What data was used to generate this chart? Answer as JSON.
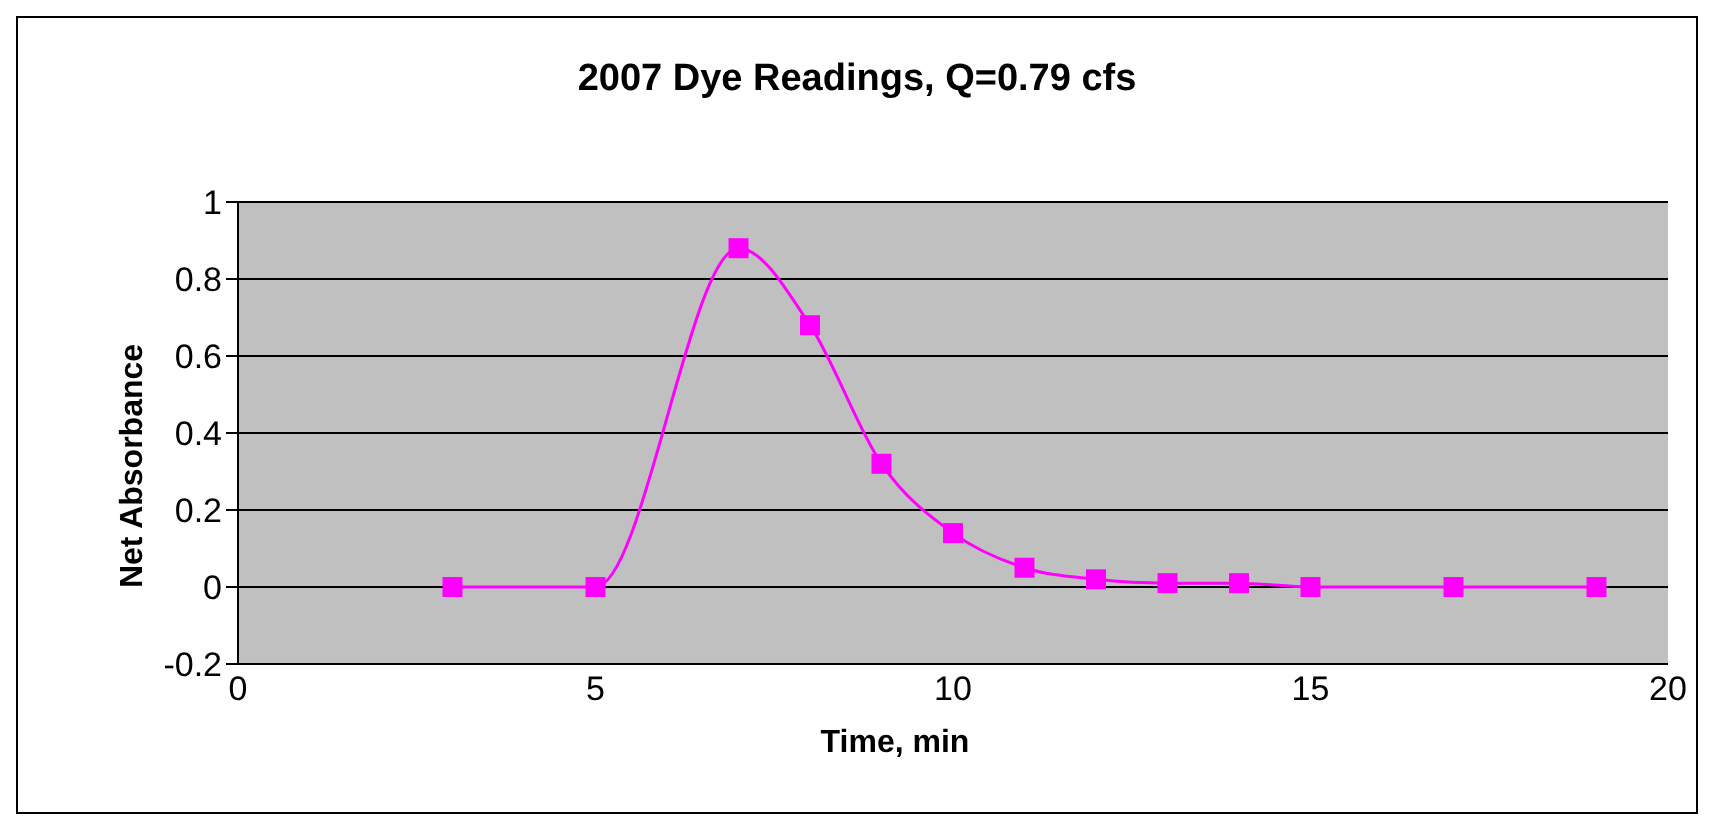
{
  "chart_data": {
    "type": "line",
    "title": "2007 Dye Readings, Q=0.79 cfs",
    "xlabel": "Time, min",
    "ylabel": "Net Absorbance",
    "x": [
      3,
      5,
      7,
      8,
      9,
      10,
      11,
      12,
      13,
      14,
      15,
      17,
      19
    ],
    "series": [
      {
        "color": "#ff00ff",
        "values": [
          0,
          0,
          0.88,
          0.68,
          0.32,
          0.14,
          0.05,
          0.02,
          0.01,
          0.01,
          0,
          0,
          0
        ]
      }
    ],
    "xlim": [
      0,
      20
    ],
    "xticks": [
      0,
      5,
      10,
      15,
      20
    ],
    "ylim": [
      -0.2,
      1
    ],
    "yticks": [
      -0.2,
      0,
      0.2,
      0.4,
      0.6,
      0.8,
      1
    ],
    "grid": "y",
    "marker": "square",
    "line_style": "solid"
  }
}
